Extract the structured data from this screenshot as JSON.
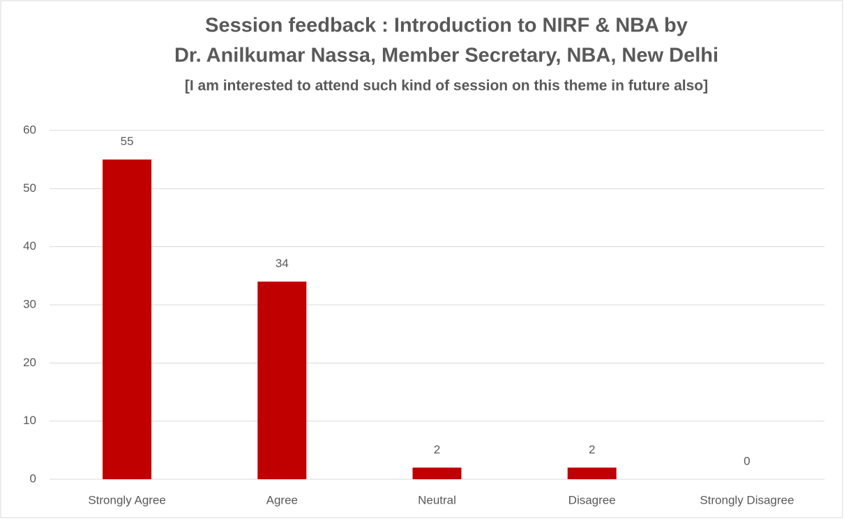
{
  "chart_data": {
    "type": "bar",
    "title": [
      "Session feedback : Introduction to NIRF & NBA by",
      "Dr. Anilkumar Nassa, Member Secretary, NBA, New Delhi"
    ],
    "subtitle": "[I am interested to attend such kind of session on this theme in future also]",
    "categories": [
      "Strongly Agree",
      "Agree",
      "Neutral",
      "Disagree",
      "Strongly Disagree"
    ],
    "values": [
      55,
      34,
      2,
      2,
      0
    ],
    "color": "#c00000",
    "ylim": [
      0,
      60
    ],
    "yticks": [
      0,
      10,
      20,
      30,
      40,
      50,
      60
    ],
    "grid": true,
    "data_labels": true
  }
}
